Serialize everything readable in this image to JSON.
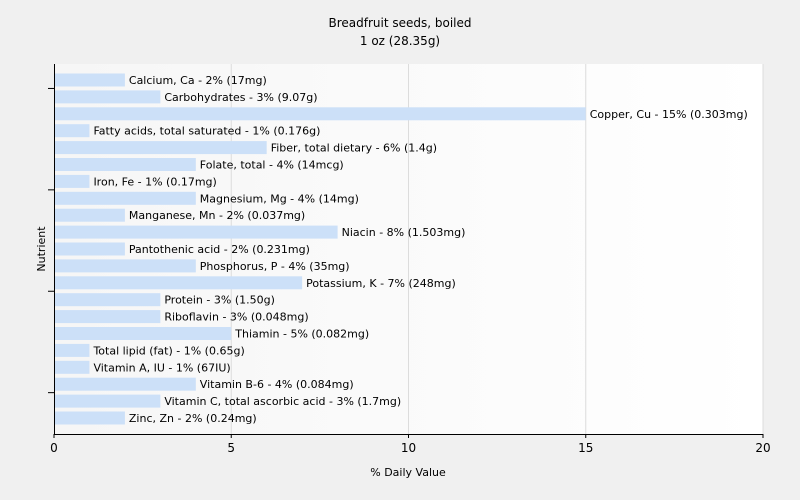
{
  "chart_data": {
    "type": "bar",
    "orientation": "horizontal",
    "title": "Breadfruit seeds, boiled",
    "subtitle": "1 oz (28.35g)",
    "xlabel": "% Daily Value",
    "ylabel": "Nutrient",
    "xlim": [
      0,
      20
    ],
    "xticks": [
      0,
      5,
      10,
      15,
      20
    ],
    "grid": true,
    "bar_color": "#cce0f8",
    "categories": [
      "Calcium, Ca",
      "Carbohydrates",
      "Copper, Cu",
      "Fatty acids, total saturated",
      "Fiber, total dietary",
      "Folate, total",
      "Iron, Fe",
      "Magnesium, Mg",
      "Manganese, Mn",
      "Niacin",
      "Pantothenic acid",
      "Phosphorus, P",
      "Potassium, K",
      "Protein",
      "Riboflavin",
      "Thiamin",
      "Total lipid (fat)",
      "Vitamin A, IU",
      "Vitamin B-6",
      "Vitamin C, total ascorbic acid",
      "Zinc, Zn"
    ],
    "values": [
      2,
      3,
      15,
      1,
      6,
      4,
      1,
      4,
      2,
      8,
      2,
      4,
      7,
      3,
      3,
      5,
      1,
      1,
      4,
      3,
      2
    ],
    "labels": [
      "Calcium, Ca - 2% (17mg)",
      "Carbohydrates - 3% (9.07g)",
      "Copper, Cu - 15% (0.303mg)",
      "Fatty acids, total saturated - 1% (0.176g)",
      "Fiber, total dietary - 6% (1.4g)",
      "Folate, total - 4% (14mcg)",
      "Iron, Fe - 1% (0.17mg)",
      "Magnesium, Mg - 4% (14mg)",
      "Manganese, Mn - 2% (0.037mg)",
      "Niacin - 8% (1.503mg)",
      "Pantothenic acid - 2% (0.231mg)",
      "Phosphorus, P - 4% (35mg)",
      "Potassium, K - 7% (248mg)",
      "Protein - 3% (1.50g)",
      "Riboflavin - 3% (0.048mg)",
      "Thiamin - 5% (0.082mg)",
      "Total lipid (fat) - 1% (0.65g)",
      "Vitamin A, IU - 1% (67IU)",
      "Vitamin B-6 - 4% (0.084mg)",
      "Vitamin C, total ascorbic acid - 3% (1.7mg)",
      "Zinc, Zn - 2% (0.24mg)"
    ]
  }
}
